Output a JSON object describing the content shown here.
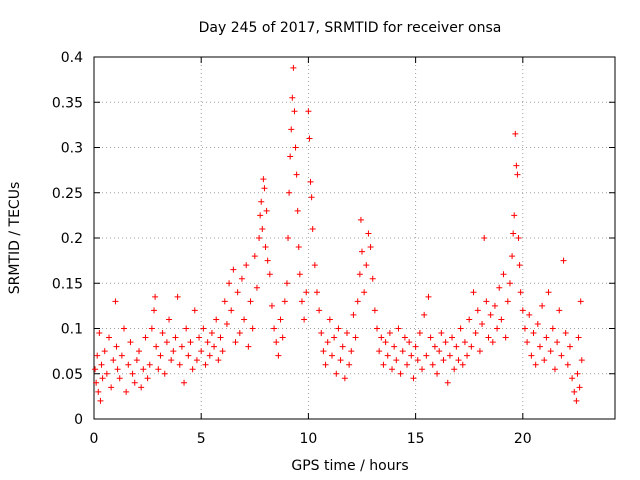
{
  "chart_data": {
    "type": "scatter",
    "title": "Day 245 of 2017, SRMTID for receiver onsa",
    "xlabel": "GPS time / hours",
    "ylabel": "SRMTID / TECUs",
    "xlim": [
      0,
      24.3
    ],
    "ylim": [
      0,
      0.4
    ],
    "xticks": [
      0,
      5,
      10,
      15,
      20
    ],
    "xtick_labels": [
      "0",
      "5",
      "10",
      "15",
      "20"
    ],
    "yticks": [
      0,
      0.05,
      0.1,
      0.15,
      0.2,
      0.25,
      0.3,
      0.35,
      0.4
    ],
    "ytick_labels": [
      "0",
      "0.05",
      "0.1",
      "0.15",
      "0.2",
      "0.25",
      "0.3",
      "0.35",
      "0.4"
    ],
    "grid": true,
    "marker": "+",
    "series": [
      {
        "name": "SRMTID",
        "color": "#ff0000",
        "points": [
          [
            0.05,
            0.055
          ],
          [
            0.1,
            0.04
          ],
          [
            0.15,
            0.07
          ],
          [
            0.2,
            0.03
          ],
          [
            0.25,
            0.095
          ],
          [
            0.3,
            0.02
          ],
          [
            0.35,
            0.06
          ],
          [
            0.4,
            0.045
          ],
          [
            0.5,
            0.075
          ],
          [
            0.6,
            0.05
          ],
          [
            0.7,
            0.09
          ],
          [
            0.8,
            0.035
          ],
          [
            0.9,
            0.065
          ],
          [
            1.0,
            0.13
          ],
          [
            1.05,
            0.08
          ],
          [
            1.1,
            0.055
          ],
          [
            1.2,
            0.045
          ],
          [
            1.3,
            0.07
          ],
          [
            1.4,
            0.1
          ],
          [
            1.5,
            0.03
          ],
          [
            1.6,
            0.06
          ],
          [
            1.7,
            0.085
          ],
          [
            1.8,
            0.05
          ],
          [
            1.9,
            0.04
          ],
          [
            2.0,
            0.065
          ],
          [
            2.1,
            0.075
          ],
          [
            2.2,
            0.035
          ],
          [
            2.3,
            0.055
          ],
          [
            2.4,
            0.09
          ],
          [
            2.5,
            0.045
          ],
          [
            2.6,
            0.06
          ],
          [
            2.7,
            0.1
          ],
          [
            2.8,
            0.12
          ],
          [
            2.85,
            0.135
          ],
          [
            2.9,
            0.08
          ],
          [
            3.0,
            0.055
          ],
          [
            3.1,
            0.07
          ],
          [
            3.2,
            0.095
          ],
          [
            3.3,
            0.05
          ],
          [
            3.4,
            0.085
          ],
          [
            3.5,
            0.11
          ],
          [
            3.6,
            0.065
          ],
          [
            3.7,
            0.075
          ],
          [
            3.8,
            0.09
          ],
          [
            3.9,
            0.135
          ],
          [
            4.0,
            0.06
          ],
          [
            4.1,
            0.08
          ],
          [
            4.2,
            0.04
          ],
          [
            4.3,
            0.1
          ],
          [
            4.4,
            0.07
          ],
          [
            4.5,
            0.085
          ],
          [
            4.6,
            0.055
          ],
          [
            4.7,
            0.12
          ],
          [
            4.8,
            0.065
          ],
          [
            4.9,
            0.09
          ],
          [
            5.0,
            0.075
          ],
          [
            5.1,
            0.1
          ],
          [
            5.2,
            0.06
          ],
          [
            5.3,
            0.085
          ],
          [
            5.4,
            0.07
          ],
          [
            5.5,
            0.095
          ],
          [
            5.6,
            0.08
          ],
          [
            5.7,
            0.11
          ],
          [
            5.8,
            0.065
          ],
          [
            5.9,
            0.09
          ],
          [
            6.0,
            0.075
          ],
          [
            6.1,
            0.13
          ],
          [
            6.2,
            0.105
          ],
          [
            6.3,
            0.15
          ],
          [
            6.4,
            0.12
          ],
          [
            6.5,
            0.165
          ],
          [
            6.6,
            0.085
          ],
          [
            6.7,
            0.14
          ],
          [
            6.8,
            0.095
          ],
          [
            6.9,
            0.155
          ],
          [
            7.0,
            0.11
          ],
          [
            7.1,
            0.17
          ],
          [
            7.2,
            0.08
          ],
          [
            7.3,
            0.13
          ],
          [
            7.4,
            0.1
          ],
          [
            7.5,
            0.18
          ],
          [
            7.6,
            0.145
          ],
          [
            7.7,
            0.2
          ],
          [
            7.75,
            0.225
          ],
          [
            7.8,
            0.24
          ],
          [
            7.85,
            0.21
          ],
          [
            7.9,
            0.265
          ],
          [
            7.95,
            0.255
          ],
          [
            8.0,
            0.19
          ],
          [
            8.05,
            0.23
          ],
          [
            8.1,
            0.175
          ],
          [
            8.2,
            0.16
          ],
          [
            8.3,
            0.125
          ],
          [
            8.4,
            0.1
          ],
          [
            8.5,
            0.085
          ],
          [
            8.6,
            0.07
          ],
          [
            8.7,
            0.11
          ],
          [
            8.8,
            0.09
          ],
          [
            8.9,
            0.13
          ],
          [
            9.0,
            0.15
          ],
          [
            9.05,
            0.2
          ],
          [
            9.1,
            0.25
          ],
          [
            9.15,
            0.29
          ],
          [
            9.2,
            0.32
          ],
          [
            9.25,
            0.355
          ],
          [
            9.3,
            0.388
          ],
          [
            9.35,
            0.34
          ],
          [
            9.4,
            0.3
          ],
          [
            9.45,
            0.27
          ],
          [
            9.5,
            0.23
          ],
          [
            9.55,
            0.19
          ],
          [
            9.6,
            0.16
          ],
          [
            9.7,
            0.13
          ],
          [
            9.8,
            0.11
          ],
          [
            9.9,
            0.14
          ],
          [
            10.0,
            0.34
          ],
          [
            10.05,
            0.31
          ],
          [
            10.1,
            0.262
          ],
          [
            10.15,
            0.245
          ],
          [
            10.2,
            0.21
          ],
          [
            10.3,
            0.17
          ],
          [
            10.4,
            0.14
          ],
          [
            10.5,
            0.12
          ],
          [
            10.6,
            0.095
          ],
          [
            10.7,
            0.075
          ],
          [
            10.8,
            0.06
          ],
          [
            10.9,
            0.085
          ],
          [
            11.0,
            0.11
          ],
          [
            11.1,
            0.07
          ],
          [
            11.2,
            0.09
          ],
          [
            11.3,
            0.05
          ],
          [
            11.4,
            0.1
          ],
          [
            11.5,
            0.065
          ],
          [
            11.6,
            0.08
          ],
          [
            11.7,
            0.045
          ],
          [
            11.8,
            0.095
          ],
          [
            11.9,
            0.06
          ],
          [
            12.0,
            0.075
          ],
          [
            12.1,
            0.115
          ],
          [
            12.2,
            0.09
          ],
          [
            12.3,
            0.13
          ],
          [
            12.4,
            0.16
          ],
          [
            12.45,
            0.22
          ],
          [
            12.5,
            0.185
          ],
          [
            12.6,
            0.14
          ],
          [
            12.7,
            0.17
          ],
          [
            12.8,
            0.205
          ],
          [
            12.9,
            0.19
          ],
          [
            13.0,
            0.155
          ],
          [
            13.1,
            0.12
          ],
          [
            13.2,
            0.1
          ],
          [
            13.3,
            0.075
          ],
          [
            13.4,
            0.09
          ],
          [
            13.5,
            0.06
          ],
          [
            13.6,
            0.085
          ],
          [
            13.7,
            0.07
          ],
          [
            13.8,
            0.095
          ],
          [
            13.9,
            0.055
          ],
          [
            14.0,
            0.08
          ],
          [
            14.1,
            0.065
          ],
          [
            14.2,
            0.1
          ],
          [
            14.3,
            0.05
          ],
          [
            14.4,
            0.075
          ],
          [
            14.5,
            0.09
          ],
          [
            14.6,
            0.06
          ],
          [
            14.7,
            0.085
          ],
          [
            14.8,
            0.07
          ],
          [
            14.9,
            0.045
          ],
          [
            15.0,
            0.08
          ],
          [
            15.1,
            0.065
          ],
          [
            15.2,
            0.095
          ],
          [
            15.3,
            0.055
          ],
          [
            15.4,
            0.115
          ],
          [
            15.5,
            0.07
          ],
          [
            15.6,
            0.135
          ],
          [
            15.7,
            0.09
          ],
          [
            15.8,
            0.06
          ],
          [
            15.9,
            0.08
          ],
          [
            16.0,
            0.05
          ],
          [
            16.1,
            0.075
          ],
          [
            16.2,
            0.095
          ],
          [
            16.3,
            0.065
          ],
          [
            16.4,
            0.085
          ],
          [
            16.5,
            0.04
          ],
          [
            16.6,
            0.07
          ],
          [
            16.7,
            0.09
          ],
          [
            16.8,
            0.055
          ],
          [
            16.9,
            0.08
          ],
          [
            17.0,
            0.065
          ],
          [
            17.1,
            0.1
          ],
          [
            17.2,
            0.06
          ],
          [
            17.3,
            0.085
          ],
          [
            17.4,
            0.07
          ],
          [
            17.5,
            0.11
          ],
          [
            17.6,
            0.08
          ],
          [
            17.7,
            0.14
          ],
          [
            17.8,
            0.095
          ],
          [
            17.9,
            0.12
          ],
          [
            18.0,
            0.075
          ],
          [
            18.1,
            0.105
          ],
          [
            18.2,
            0.2
          ],
          [
            18.3,
            0.13
          ],
          [
            18.4,
            0.09
          ],
          [
            18.5,
            0.115
          ],
          [
            18.6,
            0.085
          ],
          [
            18.7,
            0.125
          ],
          [
            18.8,
            0.1
          ],
          [
            18.9,
            0.145
          ],
          [
            19.0,
            0.11
          ],
          [
            19.1,
            0.16
          ],
          [
            19.2,
            0.09
          ],
          [
            19.3,
            0.13
          ],
          [
            19.4,
            0.15
          ],
          [
            19.5,
            0.18
          ],
          [
            19.55,
            0.205
          ],
          [
            19.6,
            0.225
          ],
          [
            19.65,
            0.315
          ],
          [
            19.7,
            0.28
          ],
          [
            19.75,
            0.27
          ],
          [
            19.8,
            0.2
          ],
          [
            19.85,
            0.17
          ],
          [
            19.9,
            0.14
          ],
          [
            20.0,
            0.12
          ],
          [
            20.1,
            0.1
          ],
          [
            20.2,
            0.085
          ],
          [
            20.3,
            0.115
          ],
          [
            20.4,
            0.07
          ],
          [
            20.5,
            0.095
          ],
          [
            20.6,
            0.06
          ],
          [
            20.7,
            0.105
          ],
          [
            20.8,
            0.08
          ],
          [
            20.9,
            0.125
          ],
          [
            21.0,
            0.065
          ],
          [
            21.1,
            0.09
          ],
          [
            21.2,
            0.14
          ],
          [
            21.3,
            0.075
          ],
          [
            21.4,
            0.1
          ],
          [
            21.5,
            0.055
          ],
          [
            21.6,
            0.085
          ],
          [
            21.7,
            0.12
          ],
          [
            21.8,
            0.07
          ],
          [
            21.9,
            0.175
          ],
          [
            22.0,
            0.095
          ],
          [
            22.1,
            0.06
          ],
          [
            22.2,
            0.08
          ],
          [
            22.3,
            0.045
          ],
          [
            22.4,
            0.03
          ],
          [
            22.5,
            0.02
          ],
          [
            22.55,
            0.05
          ],
          [
            22.6,
            0.09
          ],
          [
            22.65,
            0.035
          ],
          [
            22.7,
            0.13
          ],
          [
            22.75,
            0.065
          ]
        ]
      }
    ]
  }
}
